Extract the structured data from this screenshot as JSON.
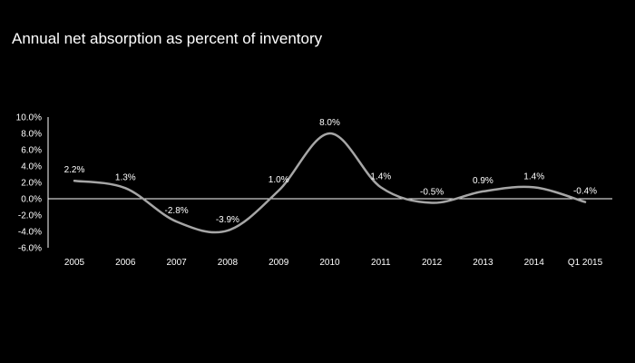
{
  "chart_data": {
    "type": "line",
    "title": "Annual net absorption as percent of inventory",
    "categories": [
      "2005",
      "2006",
      "2007",
      "2008",
      "2009",
      "2010",
      "2011",
      "2012",
      "2013",
      "2014",
      "Q1 2015"
    ],
    "series": [
      {
        "values": [
          2.2,
          1.3,
          -2.8,
          -3.9,
          1.0,
          8.0,
          1.4,
          -0.5,
          0.9,
          1.4,
          -0.4
        ],
        "labels": [
          "2.2%",
          "1.3%",
          "-2.8%",
          "-3.9%",
          "1.0%",
          "8.0%",
          "1.4%",
          "-0.5%",
          "0.9%",
          "1.4%",
          "-0.4%"
        ],
        "color": "#a6a6a6"
      }
    ],
    "ylim": [
      -6.0,
      10.0
    ],
    "yticks": [
      "10.0%",
      "8.0%",
      "6.0%",
      "4.0%",
      "2.0%",
      "0.0%",
      "-2.0%",
      "-4.0%",
      "-6.0%"
    ],
    "ytick_values": [
      10,
      8,
      6,
      4,
      2,
      0,
      -2,
      -4,
      -6
    ],
    "xlabel": "",
    "ylabel": "",
    "grid": false,
    "legend": "none",
    "background": "#000000",
    "text_color": "#ffffff",
    "axis_color": "#ffffff"
  }
}
